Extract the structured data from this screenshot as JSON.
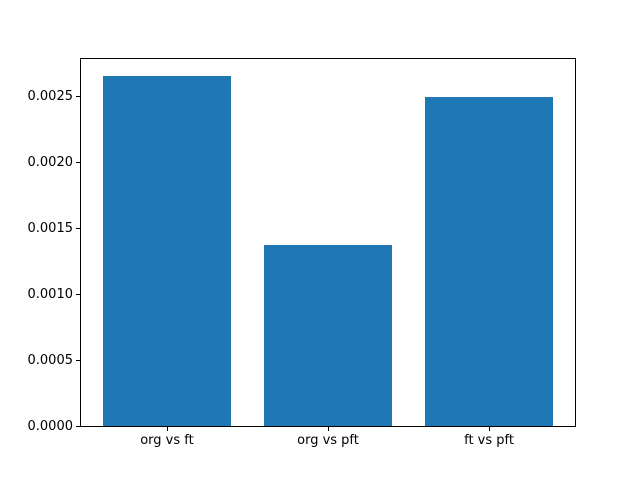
{
  "chart_data": {
    "type": "bar",
    "title": "",
    "xlabel": "",
    "ylabel": "",
    "categories": [
      "org vs ft",
      "org vs pft",
      "ft vs pft"
    ],
    "values": [
      0.00266,
      0.00138,
      0.0025
    ],
    "bar_color": "#1f77b4",
    "ylim": [
      0,
      0.002793
    ],
    "yticks": [
      0.0,
      0.0005,
      0.001,
      0.0015,
      0.002,
      0.0025
    ],
    "ytick_labels": [
      "0.0000",
      "0.0005",
      "0.0010",
      "0.0015",
      "0.0020",
      "0.0025"
    ],
    "grid": false,
    "legend": false,
    "spine_color": "#000000",
    "background_color": "#ffffff"
  }
}
